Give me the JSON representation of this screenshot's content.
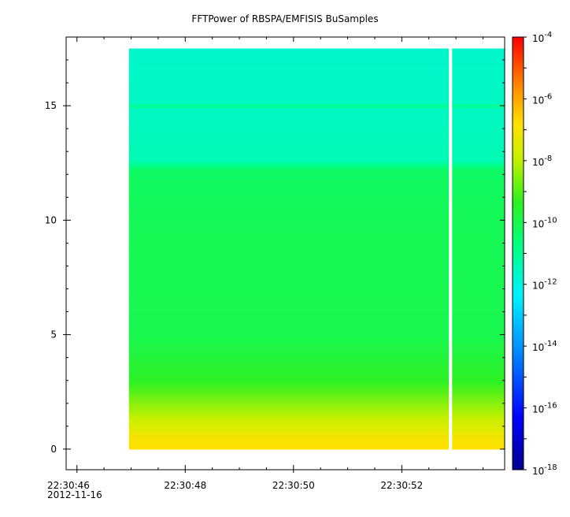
{
  "title": "FFTPower of RBSPA/EMFISIS  BuSamples",
  "chart_data": {
    "type": "heatmap",
    "title": "FFTPower of RBSPA/EMFISIS  BuSamples",
    "xlabel": "",
    "ylabel": "",
    "x_ticks": [
      "22:30:46",
      "22:30:48",
      "22:30:50",
      "22:30:52"
    ],
    "x_tick_values_s": [
      46,
      48,
      50,
      52
    ],
    "x_date_label": "2012-11-16",
    "xlim_s": [
      45.8,
      53.9
    ],
    "data_x_range_s": [
      46.96,
      53.9
    ],
    "data_gap_s": [
      52.87,
      52.93
    ],
    "y_ticks": [
      0,
      5,
      10,
      15
    ],
    "ylim": [
      -0.9,
      18.0
    ],
    "data_y_range": [
      0,
      17.5
    ],
    "colorbar": {
      "scale": "log",
      "range_exp": [
        -18,
        -4
      ],
      "tick_exponents": [
        -4,
        -6,
        -8,
        -10,
        -12,
        -14,
        -16,
        -18
      ],
      "tick_base": "10"
    },
    "spectrum_profile_log10": [
      {
        "y": 0.05,
        "value": -6.8
      },
      {
        "y": 0.5,
        "value": -7.0
      },
      {
        "y": 1.2,
        "value": -7.8
      },
      {
        "y": 2.0,
        "value": -8.5
      },
      {
        "y": 3.0,
        "value": -9.4
      },
      {
        "y": 5.0,
        "value": -10.0
      },
      {
        "y": 10.0,
        "value": -10.1
      },
      {
        "y": 12.2,
        "value": -10.3
      },
      {
        "y": 12.6,
        "value": -11.4
      },
      {
        "y": 14.9,
        "value": -11.6
      },
      {
        "y": 15.0,
        "value": -10.6
      },
      {
        "y": 15.1,
        "value": -11.6
      },
      {
        "y": 17.5,
        "value": -11.7
      }
    ],
    "grid": false,
    "legend": "none"
  }
}
